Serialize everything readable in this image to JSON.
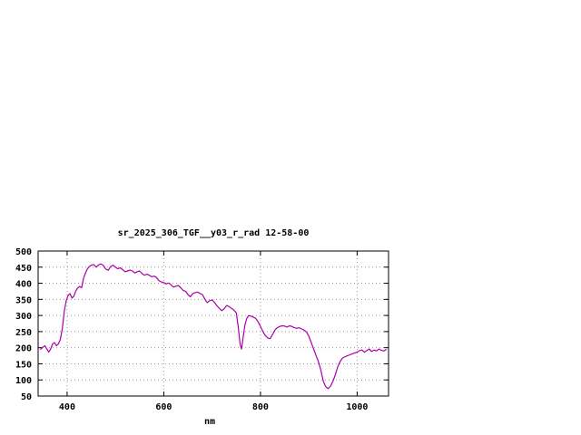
{
  "chart_data": {
    "type": "line",
    "title": "sr_2025_306_TGF__y03_r_rad 12-58-00",
    "xlabel": "nm",
    "ylabel": "",
    "xlim": [
      340,
      1065
    ],
    "ylim": [
      50,
      500
    ],
    "xticks": [
      400,
      600,
      800,
      1000
    ],
    "yticks": [
      50,
      100,
      150,
      200,
      250,
      300,
      350,
      400,
      450,
      500
    ],
    "grid": true,
    "legend": "none",
    "line_color": "#aa00aa",
    "points": [
      [
        345,
        195
      ],
      [
        350,
        202
      ],
      [
        354,
        206
      ],
      [
        358,
        196
      ],
      [
        362,
        186
      ],
      [
        366,
        196
      ],
      [
        370,
        212
      ],
      [
        374,
        216
      ],
      [
        378,
        206
      ],
      [
        382,
        212
      ],
      [
        386,
        226
      ],
      [
        390,
        258
      ],
      [
        394,
        312
      ],
      [
        398,
        346
      ],
      [
        402,
        362
      ],
      [
        406,
        368
      ],
      [
        410,
        354
      ],
      [
        414,
        360
      ],
      [
        418,
        376
      ],
      [
        422,
        386
      ],
      [
        426,
        390
      ],
      [
        430,
        386
      ],
      [
        434,
        415
      ],
      [
        438,
        432
      ],
      [
        442,
        445
      ],
      [
        446,
        452
      ],
      [
        450,
        456
      ],
      [
        455,
        458
      ],
      [
        460,
        450
      ],
      [
        465,
        457
      ],
      [
        470,
        460
      ],
      [
        475,
        455
      ],
      [
        480,
        444
      ],
      [
        485,
        440
      ],
      [
        490,
        452
      ],
      [
        495,
        456
      ],
      [
        500,
        450
      ],
      [
        505,
        445
      ],
      [
        510,
        448
      ],
      [
        515,
        442
      ],
      [
        520,
        436
      ],
      [
        525,
        438
      ],
      [
        530,
        441
      ],
      [
        535,
        438
      ],
      [
        540,
        432
      ],
      [
        545,
        436
      ],
      [
        550,
        438
      ],
      [
        555,
        430
      ],
      [
        560,
        425
      ],
      [
        565,
        428
      ],
      [
        570,
        425
      ],
      [
        575,
        420
      ],
      [
        580,
        422
      ],
      [
        585,
        418
      ],
      [
        590,
        408
      ],
      [
        595,
        404
      ],
      [
        600,
        402
      ],
      [
        605,
        398
      ],
      [
        610,
        401
      ],
      [
        615,
        395
      ],
      [
        620,
        388
      ],
      [
        625,
        391
      ],
      [
        630,
        393
      ],
      [
        635,
        386
      ],
      [
        640,
        378
      ],
      [
        645,
        375
      ],
      [
        650,
        365
      ],
      [
        655,
        358
      ],
      [
        660,
        368
      ],
      [
        665,
        371
      ],
      [
        670,
        373
      ],
      [
        675,
        368
      ],
      [
        680,
        365
      ],
      [
        685,
        350
      ],
      [
        690,
        340
      ],
      [
        695,
        346
      ],
      [
        700,
        348
      ],
      [
        705,
        340
      ],
      [
        710,
        330
      ],
      [
        715,
        322
      ],
      [
        720,
        315
      ],
      [
        725,
        321
      ],
      [
        730,
        331
      ],
      [
        735,
        328
      ],
      [
        740,
        322
      ],
      [
        745,
        317
      ],
      [
        750,
        308
      ],
      [
        754,
        265
      ],
      [
        758,
        210
      ],
      [
        761,
        196
      ],
      [
        764,
        230
      ],
      [
        768,
        272
      ],
      [
        772,
        292
      ],
      [
        776,
        300
      ],
      [
        780,
        298
      ],
      [
        785,
        295
      ],
      [
        790,
        291
      ],
      [
        795,
        281
      ],
      [
        800,
        266
      ],
      [
        805,
        250
      ],
      [
        810,
        238
      ],
      [
        815,
        230
      ],
      [
        820,
        228
      ],
      [
        825,
        241
      ],
      [
        830,
        255
      ],
      [
        835,
        262
      ],
      [
        840,
        266
      ],
      [
        845,
        268
      ],
      [
        850,
        267
      ],
      [
        855,
        264
      ],
      [
        860,
        268
      ],
      [
        865,
        266
      ],
      [
        870,
        262
      ],
      [
        875,
        260
      ],
      [
        880,
        262
      ],
      [
        885,
        258
      ],
      [
        890,
        255
      ],
      [
        895,
        249
      ],
      [
        900,
        236
      ],
      [
        905,
        216
      ],
      [
        910,
        196
      ],
      [
        915,
        176
      ],
      [
        920,
        156
      ],
      [
        925,
        130
      ],
      [
        930,
        96
      ],
      [
        935,
        79
      ],
      [
        940,
        73
      ],
      [
        945,
        81
      ],
      [
        950,
        96
      ],
      [
        955,
        116
      ],
      [
        960,
        141
      ],
      [
        965,
        158
      ],
      [
        970,
        168
      ],
      [
        975,
        172
      ],
      [
        980,
        175
      ],
      [
        985,
        178
      ],
      [
        990,
        181
      ],
      [
        995,
        184
      ],
      [
        1000,
        186
      ],
      [
        1005,
        191
      ],
      [
        1010,
        193
      ],
      [
        1015,
        186
      ],
      [
        1020,
        191
      ],
      [
        1025,
        196
      ],
      [
        1030,
        188
      ],
      [
        1035,
        193
      ],
      [
        1040,
        190
      ],
      [
        1045,
        196
      ],
      [
        1050,
        192
      ],
      [
        1055,
        190
      ],
      [
        1060,
        194
      ]
    ]
  }
}
